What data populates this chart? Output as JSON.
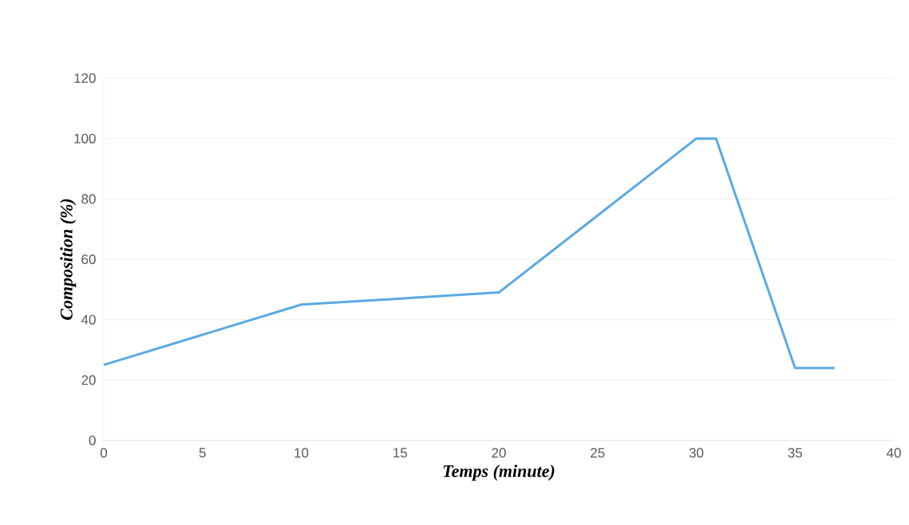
{
  "chart_data": {
    "type": "line",
    "xlabel": "Temps (minute)",
    "ylabel": "Composition   (%)",
    "x": [
      0,
      10,
      20,
      30,
      31,
      35,
      37
    ],
    "series": [
      {
        "color": "#5aaae2",
        "values": [
          25,
          45,
          49,
          100,
          100,
          24,
          24
        ]
      }
    ],
    "xlim": [
      0,
      40
    ],
    "ylim": [
      0,
      120
    ],
    "xticks": [
      0,
      5,
      10,
      15,
      20,
      25,
      30,
      35,
      40
    ],
    "yticks": [
      0,
      20,
      40,
      60,
      80,
      100,
      120
    ],
    "grid": "y",
    "marker": "none",
    "line_style": "solid"
  }
}
